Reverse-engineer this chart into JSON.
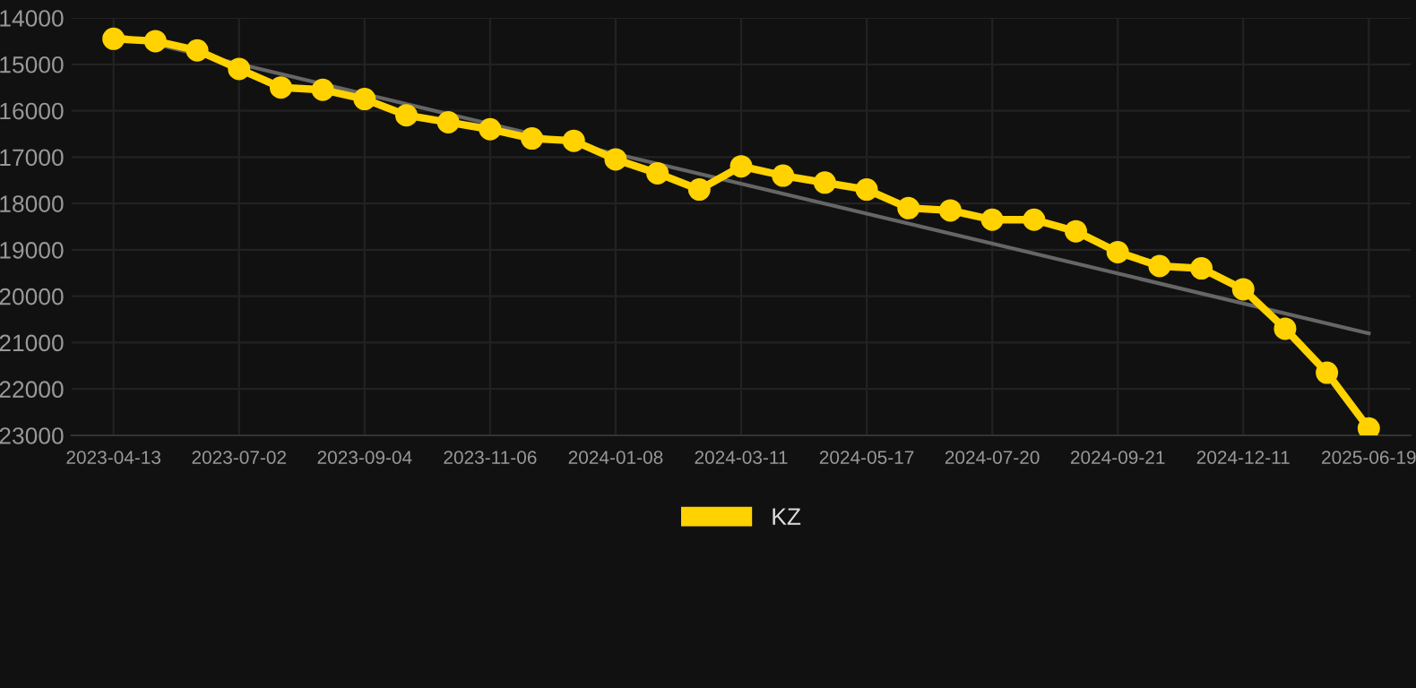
{
  "chart_data": {
    "type": "line",
    "categories": [
      "2023-04-13",
      null,
      null,
      "2023-07-02",
      null,
      null,
      "2023-09-04",
      null,
      null,
      "2023-11-06",
      null,
      null,
      "2024-01-08",
      null,
      null,
      "2024-03-11",
      null,
      null,
      "2024-05-17",
      null,
      null,
      "2024-07-20",
      null,
      null,
      "2024-09-21",
      null,
      null,
      "2024-12-11",
      null,
      null,
      "2025-06-19"
    ],
    "series": [
      {
        "name": "KZ",
        "color": "#ffd200",
        "marker": "circle",
        "values": [
          14450,
          14500,
          14700,
          15100,
          15500,
          15550,
          15750,
          16100,
          16250,
          16400,
          16600,
          16650,
          17050,
          17350,
          17700,
          17200,
          17400,
          17550,
          17700,
          18100,
          18150,
          18350,
          18350,
          18600,
          19050,
          19350,
          19400,
          19850,
          20700,
          21650,
          22850
        ]
      },
      {
        "type": "line",
        "color": "#666666",
        "marker": "none",
        "values": [
          14350,
          null,
          null,
          null,
          null,
          null,
          null,
          null,
          null,
          null,
          null,
          null,
          null,
          null,
          null,
          null,
          null,
          null,
          null,
          null,
          null,
          null,
          null,
          null,
          null,
          null,
          null,
          null,
          null,
          null,
          20800
        ]
      }
    ],
    "ylim": [
      23000,
      14000
    ],
    "yticks": [
      14000,
      15000,
      16000,
      17000,
      18000,
      19000,
      20000,
      21000,
      22000,
      23000
    ],
    "grid": true,
    "legend": "bottom"
  }
}
